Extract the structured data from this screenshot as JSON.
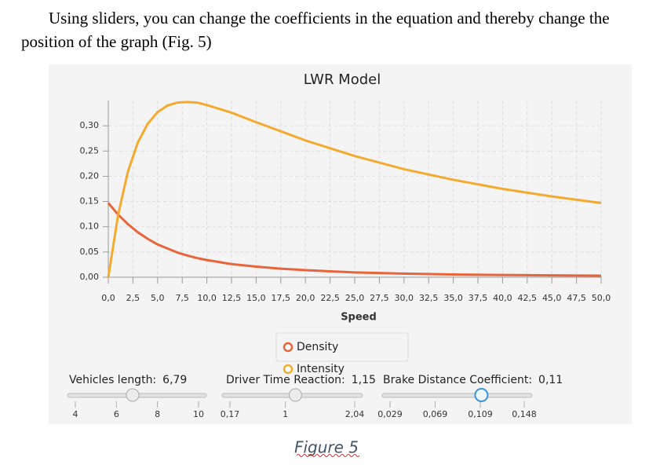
{
  "paragraph": "Using sliders, you can change the coefficients in the equation and thereby change the position of the graph (Fig. 5)",
  "chart_data": {
    "type": "line",
    "title": "LWR Model",
    "x_label": "Speed",
    "x": [
      0,
      1,
      2,
      3,
      4,
      5,
      6,
      7,
      8,
      9,
      10,
      12.5,
      15,
      17.5,
      20,
      25,
      30,
      35,
      40,
      45,
      50
    ],
    "series": [
      {
        "name": "Density",
        "color": "#e8643a",
        "values": [
          0.147,
          0.124,
          0.105,
          0.089,
          0.076,
          0.065,
          0.057,
          0.049,
          0.043,
          0.038,
          0.034,
          0.026,
          0.021,
          0.017,
          0.014,
          0.0096,
          0.0071,
          0.0055,
          0.0044,
          0.0036,
          0.003
        ]
      },
      {
        "name": "Intensity",
        "color": "#f4aa2f",
        "values": [
          0,
          0.124,
          0.21,
          0.267,
          0.304,
          0.327,
          0.34,
          0.346,
          0.347,
          0.346,
          0.341,
          0.326,
          0.307,
          0.289,
          0.271,
          0.24,
          0.214,
          0.193,
          0.175,
          0.16,
          0.147
        ]
      }
    ],
    "xlim": [
      0,
      50
    ],
    "xticks": [
      {
        "value": 0,
        "label": "0,0"
      },
      {
        "value": 2.5,
        "label": "2,5"
      },
      {
        "value": 5,
        "label": "5,0"
      },
      {
        "value": 7.5,
        "label": "7,5"
      },
      {
        "value": 10,
        "label": "10,0"
      },
      {
        "value": 12.5,
        "label": "12,5"
      },
      {
        "value": 15,
        "label": "15,0"
      },
      {
        "value": 17.5,
        "label": "17,5"
      },
      {
        "value": 20,
        "label": "20,0"
      },
      {
        "value": 22.5,
        "label": "22,5"
      },
      {
        "value": 25,
        "label": "25,0"
      },
      {
        "value": 27.5,
        "label": "27,5"
      },
      {
        "value": 30,
        "label": "30,0"
      },
      {
        "value": 32.5,
        "label": "32,5"
      },
      {
        "value": 35,
        "label": "35,0"
      },
      {
        "value": 37.5,
        "label": "37,5"
      },
      {
        "value": 40,
        "label": "40,0"
      },
      {
        "value": 42.5,
        "label": "42,5"
      },
      {
        "value": 45,
        "label": "45,0"
      },
      {
        "value": 47.5,
        "label": "47,5"
      },
      {
        "value": 50,
        "label": "50,0"
      }
    ],
    "ylim": [
      0,
      0.35
    ],
    "yticks": [
      {
        "value": 0,
        "label": "0,00"
      },
      {
        "value": 0.05,
        "label": "0,05"
      },
      {
        "value": 0.1,
        "label": "0,10"
      },
      {
        "value": 0.15,
        "label": "0,15"
      },
      {
        "value": 0.2,
        "label": "0,20"
      },
      {
        "value": 0.25,
        "label": "0,25"
      },
      {
        "value": 0.3,
        "label": "0,30"
      }
    ],
    "grid": true
  },
  "sliders": [
    {
      "label": "Vehicles length:",
      "value_label": "6,79",
      "value": 6.79,
      "ticks": [
        4,
        6,
        8,
        10
      ]
    },
    {
      "label": "Driver Time Reaction:",
      "value_label": "1,15",
      "value": 1.15,
      "ticks": [
        {
          "value": 0.17,
          "label": "0,17"
        },
        1,
        {
          "value": 2.04,
          "label": "2,04"
        }
      ]
    },
    {
      "label": "Brake Distance Coefficient:",
      "value_label": "0,11",
      "value": 0.11,
      "ticks": [
        {
          "value": 0.029,
          "label": "0,029"
        },
        {
          "value": 0.069,
          "label": "0,069"
        },
        {
          "value": 0.109,
          "label": "0,109"
        },
        {
          "value": 0.148,
          "label": "0,148"
        }
      ]
    }
  ],
  "caption": "Figure 5"
}
